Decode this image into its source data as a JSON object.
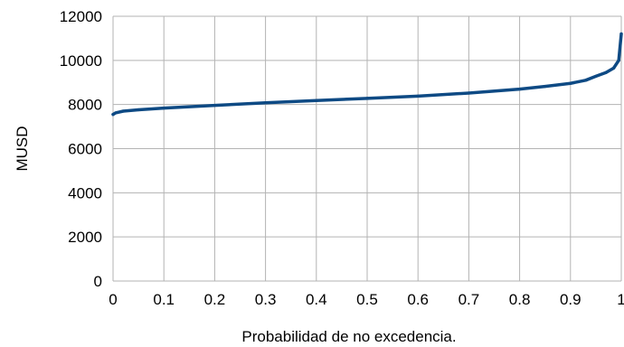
{
  "chart_data": {
    "type": "line",
    "title": "",
    "xlabel": "Probabilidad de no excedencia.",
    "ylabel": "MUSD",
    "xlim": [
      0,
      1
    ],
    "ylim": [
      0,
      12000
    ],
    "x_ticks": [
      0,
      0.1,
      0.2,
      0.3,
      0.4,
      0.5,
      0.6,
      0.7,
      0.8,
      0.9,
      1
    ],
    "x_tick_labels": [
      "0",
      "0.1",
      "0.2",
      "0.3",
      "0.4",
      "0.5",
      "0.6",
      "0.7",
      "0.8",
      "0.9",
      "1"
    ],
    "y_ticks": [
      0,
      2000,
      4000,
      6000,
      8000,
      10000,
      12000
    ],
    "y_tick_labels": [
      "0",
      "2000",
      "4000",
      "6000",
      "8000",
      "10000",
      "12000"
    ],
    "grid": true,
    "legend": "none",
    "series": [
      {
        "color": "#0e4a84",
        "x": [
          0,
          0.005,
          0.02,
          0.05,
          0.1,
          0.2,
          0.3,
          0.4,
          0.5,
          0.6,
          0.7,
          0.8,
          0.85,
          0.9,
          0.93,
          0.95,
          0.97,
          0.985,
          0.995,
          1.0
        ],
        "y": [
          7550,
          7620,
          7700,
          7760,
          7840,
          7960,
          8080,
          8180,
          8280,
          8380,
          8520,
          8700,
          8820,
          8960,
          9100,
          9280,
          9450,
          9650,
          10000,
          11200
        ]
      }
    ]
  }
}
